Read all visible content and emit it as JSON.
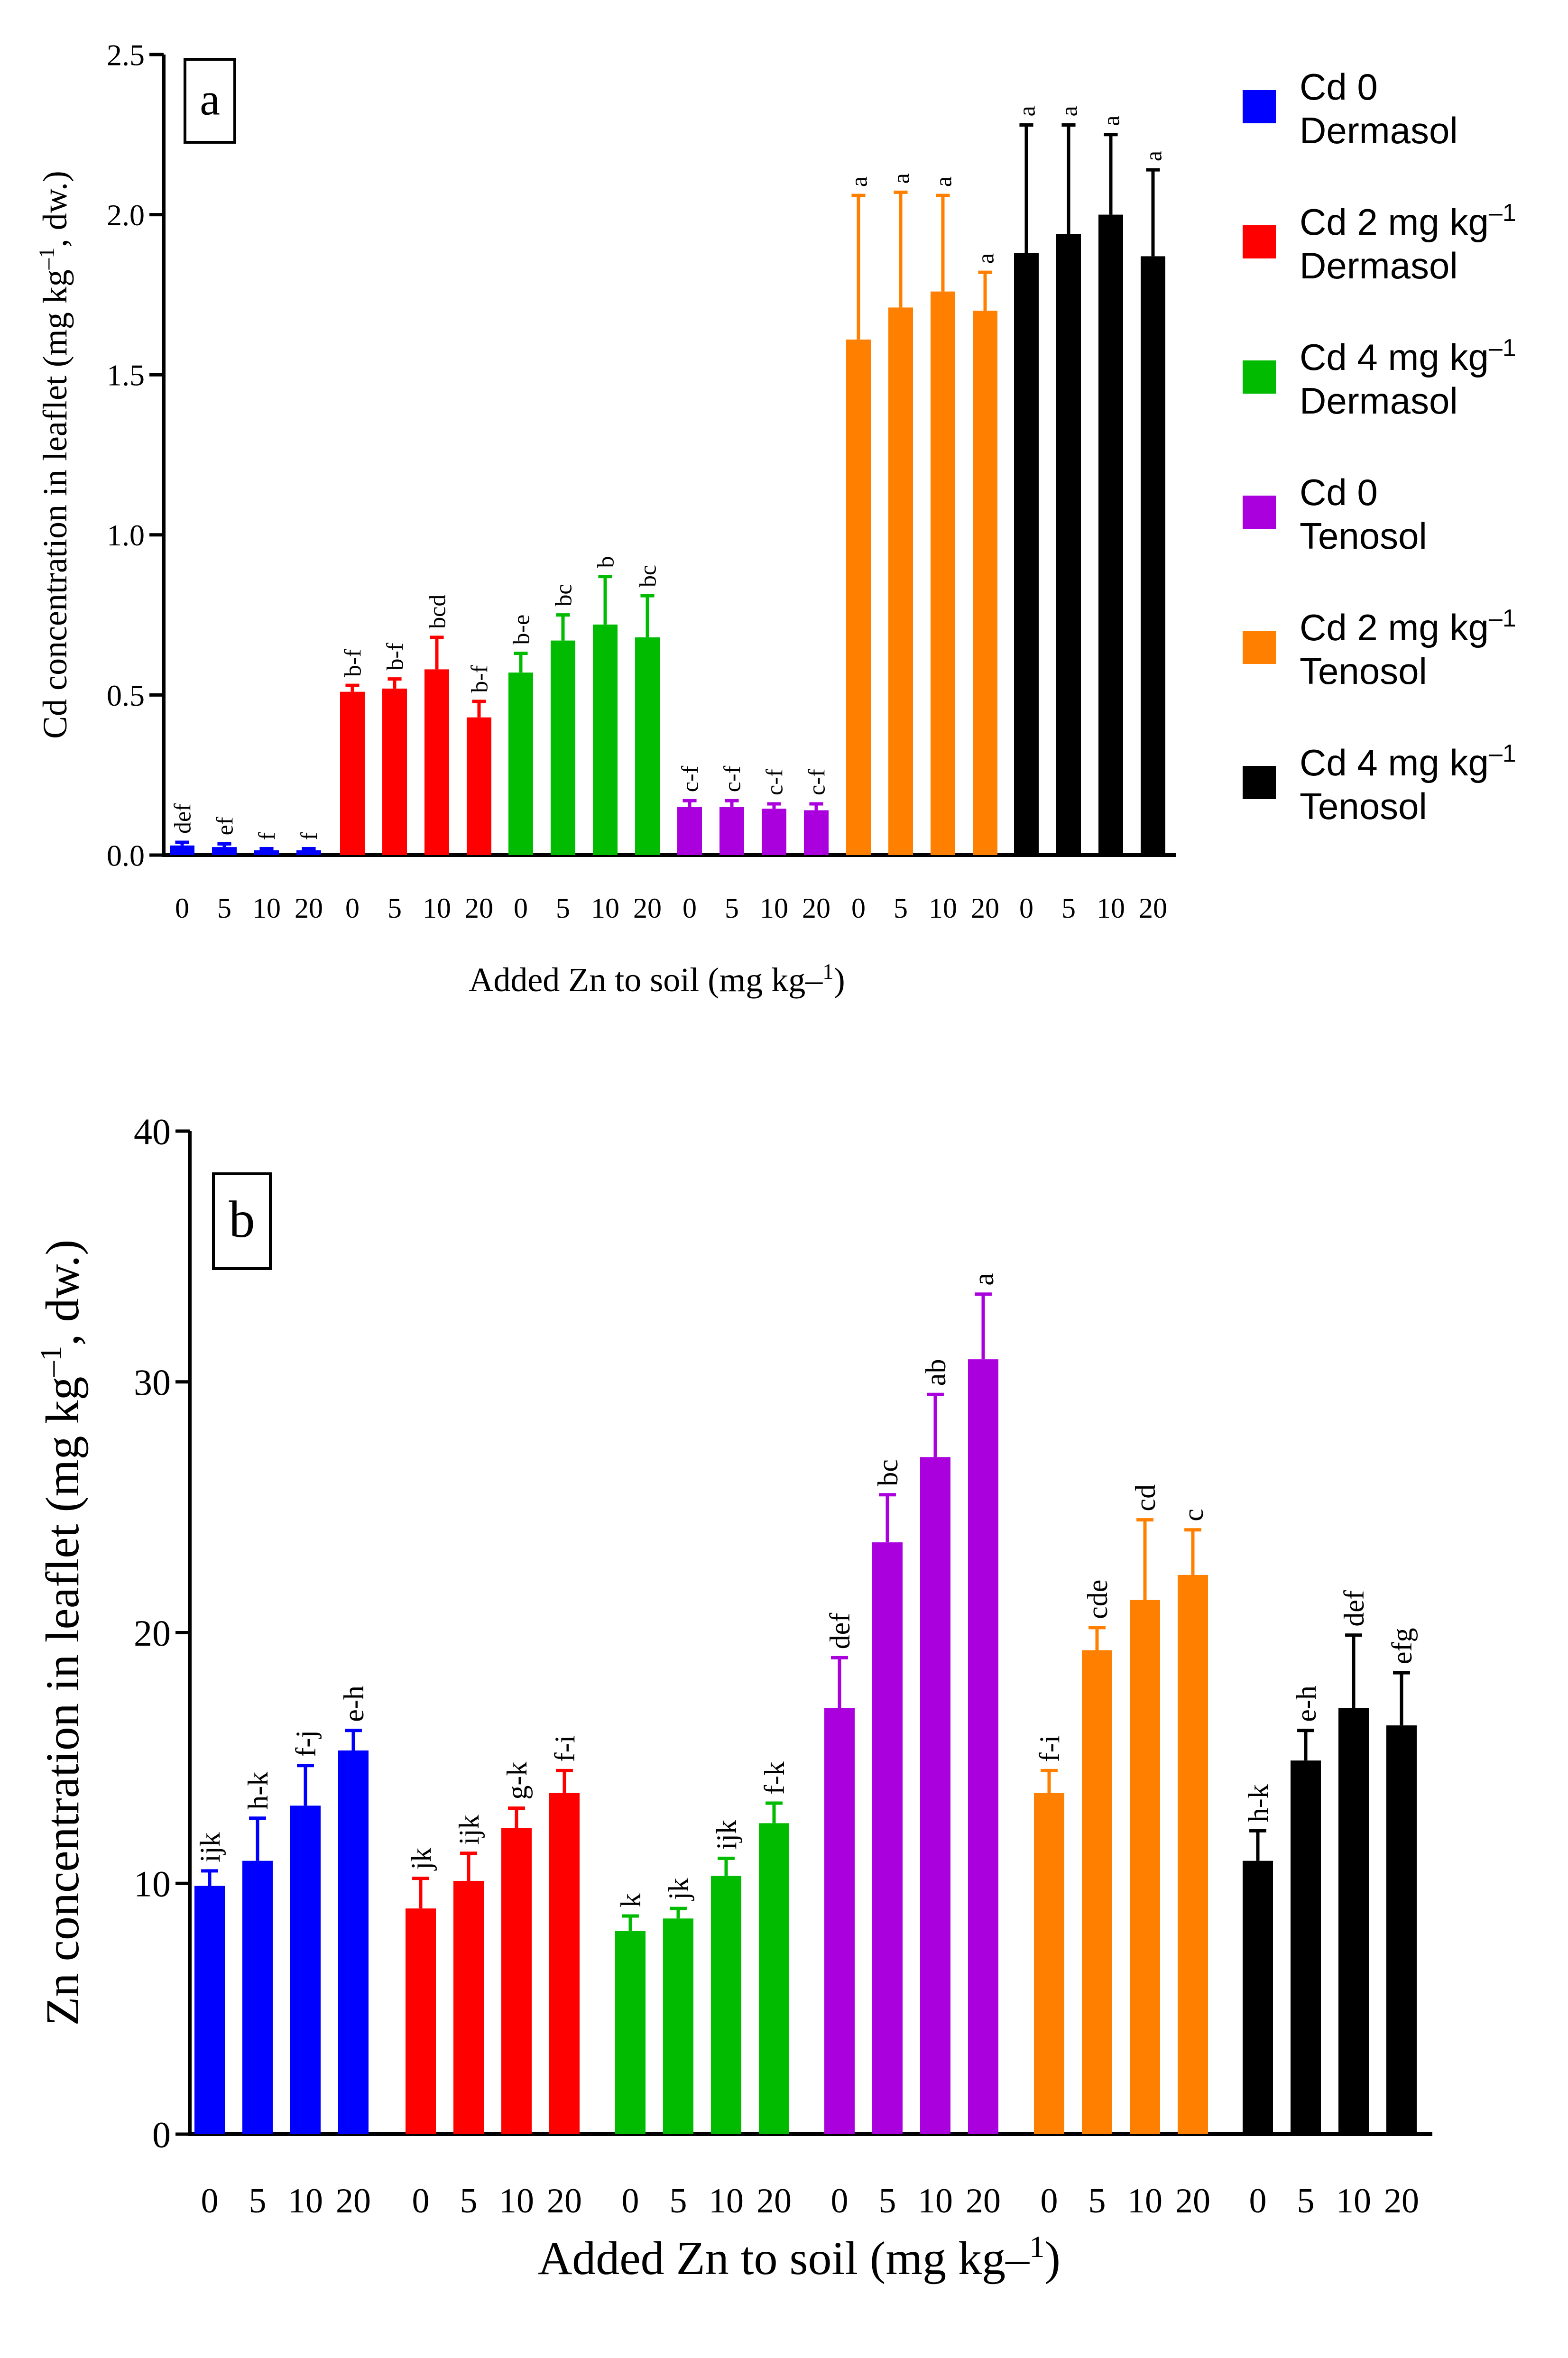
{
  "chart_data": [
    {
      "type": "bar",
      "panel_label": "a",
      "xlabel": "Added Zn to soil (mg kg–",
      "xlabel_sup": "1",
      "xlabel_end": ")",
      "ylabel": "Cd concentration in leaflet (mg kg",
      "ylabel_sup": "–1",
      "ylabel_end": ", dw.)",
      "ylim": [
        0,
        2.5
      ],
      "yticks": [
        "0.0",
        "0.5",
        "1.0",
        "1.5",
        "2.0",
        "2.5"
      ],
      "ytick_values": [
        0,
        0.5,
        1.0,
        1.5,
        2.0,
        2.5
      ],
      "categories": [
        "0",
        "5",
        "10",
        "20"
      ],
      "series": [
        {
          "name": "Cd 0 Dermasol",
          "color": "#0000ff",
          "values": [
            0.03,
            0.025,
            0.015,
            0.015
          ],
          "errors": [
            0.01,
            0.01,
            0.005,
            0.005
          ],
          "letters": [
            "def",
            "ef",
            "f",
            "f"
          ]
        },
        {
          "name": "Cd 2 mg kg⁻¹ Dermasol",
          "color": "#ff0000",
          "values": [
            0.51,
            0.52,
            0.58,
            0.43
          ],
          "errors": [
            0.02,
            0.03,
            0.1,
            0.05
          ],
          "letters": [
            "b-f",
            "b-f",
            "bcd",
            "b-f"
          ]
        },
        {
          "name": "Cd 4 mg kg⁻¹ Dermasol",
          "color": "#00bb00",
          "values": [
            0.57,
            0.67,
            0.72,
            0.68
          ],
          "errors": [
            0.06,
            0.08,
            0.15,
            0.13
          ],
          "letters": [
            "b-e",
            "bc",
            "b",
            "bc"
          ]
        },
        {
          "name": "Cd 0 Tenosol",
          "color": "#aa00dd",
          "values": [
            0.15,
            0.15,
            0.145,
            0.14
          ],
          "errors": [
            0.02,
            0.02,
            0.015,
            0.02
          ],
          "letters": [
            "c-f",
            "c-f",
            "c-f",
            "c-f"
          ]
        },
        {
          "name": "Cd 2 mg kg⁻¹ Tenosol",
          "color": "#ff8000",
          "values": [
            1.61,
            1.71,
            1.76,
            1.7
          ],
          "errors": [
            0.45,
            0.36,
            0.3,
            0.12
          ],
          "letters": [
            "a",
            "a",
            "a",
            "a"
          ]
        },
        {
          "name": "Cd 4 mg kg⁻¹ Tenosol",
          "color": "#000000",
          "values": [
            1.88,
            1.94,
            2.0,
            1.87
          ],
          "errors": [
            0.4,
            0.34,
            0.25,
            0.27
          ],
          "letters": [
            "a",
            "a",
            "a",
            "a"
          ]
        }
      ]
    },
    {
      "type": "bar",
      "panel_label": "b",
      "xlabel": "Added Zn to soil (mg kg–",
      "xlabel_sup": "1",
      "xlabel_end": ")",
      "ylabel": "Zn concentration in leaflet (mg kg",
      "ylabel_sup": "–1",
      "ylabel_end": ", dw.)",
      "ylim": [
        0,
        40
      ],
      "yticks": [
        "0",
        "10",
        "20",
        "30",
        "40"
      ],
      "ytick_values": [
        0,
        10,
        20,
        30,
        40
      ],
      "categories": [
        "0",
        "5",
        "10",
        "20"
      ],
      "series": [
        {
          "name": "Cd 0 Dermasol",
          "color": "#0000ff",
          "values": [
            9.9,
            10.9,
            13.1,
            15.3
          ],
          "errors": [
            0.6,
            1.7,
            1.6,
            0.8
          ],
          "letters": [
            "ijk",
            "h-k",
            "f-j",
            "e-h"
          ]
        },
        {
          "name": "Cd 2 mg kg⁻¹ Dermasol",
          "color": "#ff0000",
          "values": [
            9.0,
            10.1,
            12.2,
            13.6
          ],
          "errors": [
            1.2,
            1.1,
            0.8,
            0.9
          ],
          "letters": [
            "jk",
            "ijk",
            "g-k",
            "f-i"
          ]
        },
        {
          "name": "Cd 4 mg kg⁻¹ Dermasol",
          "color": "#00bb00",
          "values": [
            8.1,
            8.6,
            10.3,
            12.4
          ],
          "errors": [
            0.6,
            0.4,
            0.7,
            0.8
          ],
          "letters": [
            "k",
            "jk",
            "ijk",
            "f-k"
          ]
        },
        {
          "name": "Cd 0 Tenosol",
          "color": "#aa00dd",
          "values": [
            17.0,
            23.6,
            27.0,
            30.9
          ],
          "errors": [
            2.0,
            1.9,
            2.5,
            2.6
          ],
          "letters": [
            "def",
            "bc",
            "ab",
            "a"
          ]
        },
        {
          "name": "Cd 2 mg kg⁻¹ Tenosol",
          "color": "#ff8000",
          "values": [
            13.6,
            19.3,
            21.3,
            22.3
          ],
          "errors": [
            0.9,
            0.9,
            3.2,
            1.8
          ],
          "letters": [
            "f-i",
            "cde",
            "cd",
            "c"
          ]
        },
        {
          "name": "Cd 4 mg kg⁻¹ Tenosol",
          "color": "#000000",
          "values": [
            10.9,
            14.9,
            17.0,
            16.3
          ],
          "errors": [
            1.2,
            1.2,
            2.9,
            2.1
          ],
          "letters": [
            "h-k",
            "e-h",
            "def",
            "efg"
          ]
        }
      ]
    }
  ],
  "legend": [
    {
      "line1": "Cd 0",
      "line2": "Dermasol",
      "sup": "",
      "color": "#0000ff"
    },
    {
      "line1": "Cd 2 mg kg",
      "sup": "–1",
      "line2": "Dermasol",
      "color": "#ff0000"
    },
    {
      "line1": "Cd 4 mg kg",
      "sup": "–1",
      "line2": "Dermasol",
      "color": "#00bb00"
    },
    {
      "line1": "Cd 0",
      "line2": "Tenosol",
      "sup": "",
      "color": "#aa00dd"
    },
    {
      "line1": "Cd 2 mg kg",
      "sup": "–1",
      "line2": "Tenosol",
      "color": "#ff8000"
    },
    {
      "line1": "Cd 4 mg kg",
      "sup": "–1",
      "line2": "Tenosol",
      "color": "#000000"
    }
  ]
}
